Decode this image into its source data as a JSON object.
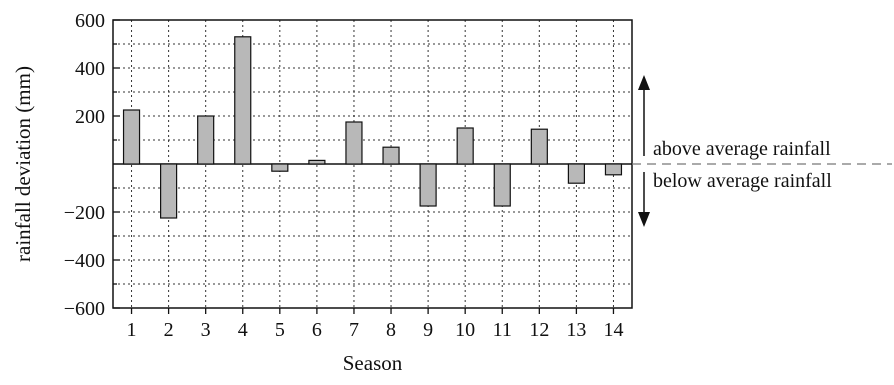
{
  "chart_data": {
    "type": "bar",
    "categories": [
      "1",
      "2",
      "3",
      "4",
      "5",
      "6",
      "7",
      "8",
      "9",
      "10",
      "11",
      "12",
      "13",
      "14"
    ],
    "values": [
      225,
      -225,
      200,
      530,
      -30,
      15,
      175,
      70,
      -175,
      150,
      -175,
      145,
      -80,
      -45
    ],
    "xlabel": "Season",
    "ylabel": "rainfall deviation (mm)",
    "ylim": [
      -600,
      600
    ],
    "yticks": [
      600,
      400,
      200,
      -200,
      -400,
      -600
    ],
    "ytick_labels": [
      "600",
      "400",
      "200",
      "−200",
      "−400",
      "−600"
    ],
    "grid": true,
    "bar_color": "#b8b8b8",
    "annotations": {
      "above": "above average rainfall",
      "below": "below average rainfall"
    }
  }
}
